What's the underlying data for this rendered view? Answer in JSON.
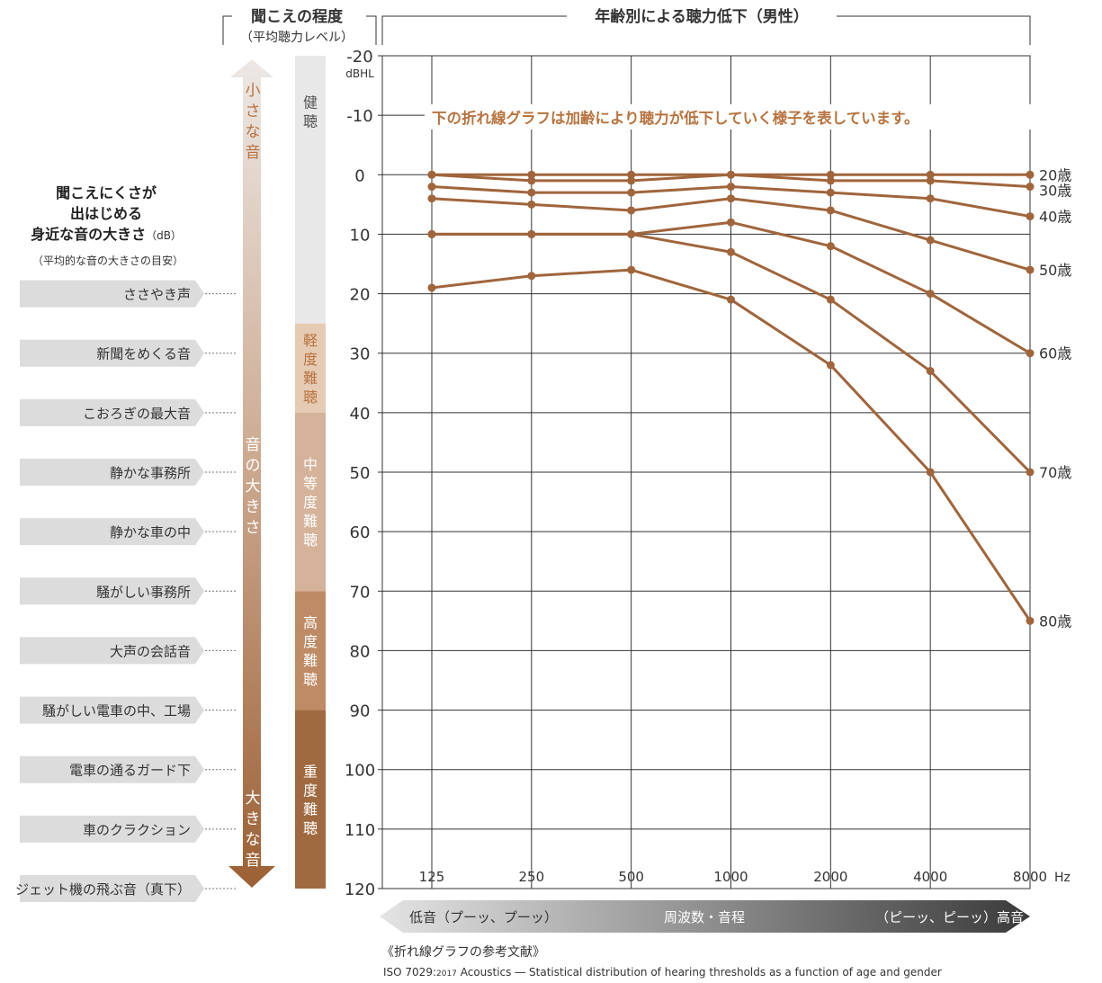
{
  "colors": {
    "line": "#a0653c",
    "accent": "#b8733f",
    "grid": "#333333",
    "label_bg": "#dcdcdc",
    "band_healthy": "#e8e8e9",
    "band_mild": "#e6cbb4",
    "band_moderate": "#d4b39a",
    "band_severe": "#be8b66",
    "band_profound": "#a06a40",
    "arrow_dark": "#3a3a3a"
  },
  "headers": {
    "left_title": "聞こえの程度",
    "left_subtitle": "（平均聴力レベル）",
    "main_title": "年齢別による聴力低下（男性）"
  },
  "sound_examples": {
    "title_lines": [
      "聞こえにくさが",
      "出はじめる",
      "身近な音の大きさ"
    ],
    "title_unit": "（dB）",
    "note": "（平均的な音の大きさの目安）",
    "items": [
      {
        "label": "ささやき声",
        "db": 20
      },
      {
        "label": "新聞をめくる音",
        "db": 30
      },
      {
        "label": "こおろぎの最大音",
        "db": 40
      },
      {
        "label": "静かな事務所",
        "db": 50
      },
      {
        "label": "静かな車の中",
        "db": 60
      },
      {
        "label": "騒がしい事務所",
        "db": 70
      },
      {
        "label": "大声の会話音",
        "db": 80
      },
      {
        "label": "騒がしい電車の中、工場",
        "db": 90
      },
      {
        "label": "電車の通るガード下",
        "db": 100
      },
      {
        "label": "車のクラクション",
        "db": 110
      },
      {
        "label": "ジェット機の飛ぶ音（真下）",
        "db": 120
      }
    ]
  },
  "loudness_arrow": {
    "top": "小さな音",
    "middle": "音の大きさ",
    "bottom": "大きな音"
  },
  "hearing_levels": [
    {
      "label": "健聴",
      "from": -20,
      "to": 25,
      "color_key": "band_healthy",
      "text_color": "#555555"
    },
    {
      "label": "軽度難聴",
      "from": 25,
      "to": 40,
      "color_key": "band_mild",
      "text_color": "#b8733f"
    },
    {
      "label": "中等度難聴",
      "from": 40,
      "to": 70,
      "color_key": "band_moderate",
      "text_color": "#ffffff"
    },
    {
      "label": "高度難聴",
      "from": 70,
      "to": 90,
      "color_key": "band_severe",
      "text_color": "#ffffff"
    },
    {
      "label": "重度難聴",
      "from": 90,
      "to": 120,
      "color_key": "band_profound",
      "text_color": "#ffffff"
    }
  ],
  "annotation": "下の折れ線グラフは加齢により聴力が低下していく様子を表しています。",
  "chart_data": {
    "type": "line",
    "title": "年齢別による聴力低下（男性）",
    "x": [
      "125",
      "250",
      "500",
      "1000",
      "2000",
      "4000",
      "8000"
    ],
    "xunit": "Hz",
    "yunit": "dBHL",
    "ylim": [
      -20,
      120
    ],
    "yticks": [
      -20,
      -10,
      0,
      10,
      20,
      30,
      40,
      50,
      60,
      70,
      80,
      90,
      100,
      110,
      120
    ],
    "y_inverted": true,
    "grid": true,
    "series": [
      {
        "name": "20歳",
        "values": [
          0,
          0,
          0,
          0,
          0,
          0,
          0
        ]
      },
      {
        "name": "30歳",
        "values": [
          0,
          1,
          1,
          0,
          1,
          1,
          2
        ]
      },
      {
        "name": "40歳",
        "values": [
          2,
          3,
          3,
          2,
          3,
          4,
          7
        ]
      },
      {
        "name": "50歳",
        "values": [
          4,
          5,
          6,
          4,
          6,
          11,
          16
        ]
      },
      {
        "name": "60歳",
        "values": [
          10,
          10,
          10,
          8,
          12,
          20,
          30
        ]
      },
      {
        "name": "70歳",
        "values": [
          10,
          10,
          10,
          13,
          21,
          33,
          50
        ]
      },
      {
        "name": "80歳",
        "values": [
          19,
          17,
          16,
          21,
          32,
          50,
          75
        ]
      }
    ]
  },
  "frequency_bar": {
    "low": "低音（プーッ、プーッ）",
    "middle": "周波数・音程",
    "high": "（ピーッ、ピーッ）高音"
  },
  "reference": {
    "title": "《折れ線グラフの参考文献》",
    "citation_pre": "ISO 7029:",
    "citation_year": "2017",
    "citation_post": " Acoustics ― Statistical distribution of hearing thresholds as a function of age and gender"
  }
}
